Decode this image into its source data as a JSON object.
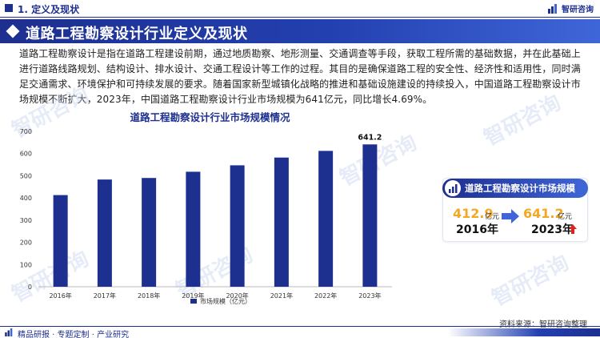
{
  "header": {
    "section_title": "1. 定义及现状",
    "brand_name": "智研咨询"
  },
  "band": {
    "title": "道路工程勘察设计行业定义及现状"
  },
  "intro_text": "道路工程勘察设计是指在道路工程建设前期，通过地质勘察、地形测量、交通调查等手段，获取工程所需的基础数据，并在此基础上进行道路线路规划、结构设计、排水设计、交通工程设计等工作的过程。其目的是确保道路工程的安全性、经济性和适用性，同时满足交通需求、环境保护和可持续发展的要求。随着国家新型城镇化战略的推进和基础设施建设的持续投入，中国道路工程勘察设计市场规模不断扩大，2023年，中国道路工程勘察设计行业市场规模为641亿元，同比增长4.69%。",
  "chart_data": {
    "type": "bar",
    "title": "道路工程勘察设计行业市场规模情况",
    "categories": [
      "2016年",
      "2017年",
      "2018年",
      "2019年",
      "2020年",
      "2021年",
      "2022年",
      "2023年"
    ],
    "series": [
      {
        "name": "市场规模（亿元）",
        "values": [
          412.9,
          483,
          490,
          518,
          547,
          582,
          612,
          641.2
        ]
      }
    ],
    "data_labels": {
      "2023年": "641.2"
    },
    "ylim": [
      0,
      700
    ],
    "yticks": [
      0,
      100,
      200,
      300,
      400,
      500,
      600,
      700
    ],
    "grid": false,
    "legend": "bottom-center",
    "bar_color": "#1d2f8f"
  },
  "watermark_text": "智研咨询",
  "panel": {
    "title": "道路工程勘察设计市场规模",
    "start_value": "412.9",
    "start_unit": "亿元",
    "start_year": "2016年",
    "end_value": "641.2",
    "end_unit": "亿元",
    "end_year": "2023年"
  },
  "source": "资料来源：智研咨询整理",
  "footer": {
    "text": "精品研报 · 专题定制 · 产业研究"
  },
  "colors": {
    "brand_navy": "#1d2f8f",
    "highlight_orange": "#f5a623",
    "up_red": "#d9261c"
  },
  "icons": [
    "brand-logo-icon",
    "diamond-icon",
    "chart-badge-icon",
    "arrow-right-icon",
    "up-arrow-icon"
  ]
}
